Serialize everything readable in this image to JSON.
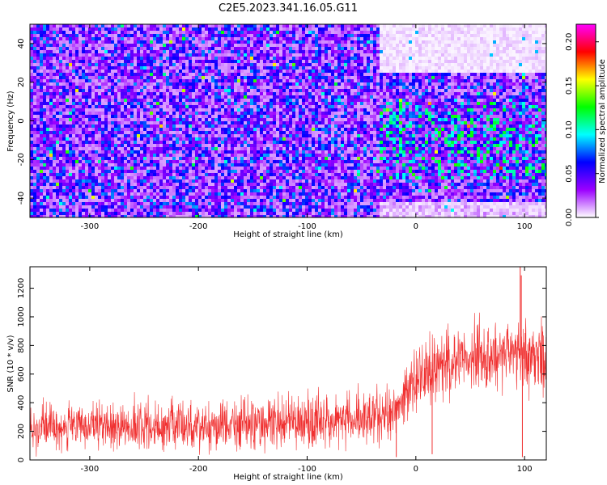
{
  "title": "C2E5.2023.341.16.05.G11",
  "chart_data": [
    {
      "type": "heatmap",
      "xlabel": "Height of straight line (km)",
      "ylabel": "Frequency (Hz)",
      "xlim": [
        -355,
        120
      ],
      "ylim": [
        -50,
        50
      ],
      "xticks": [
        -300,
        -200,
        -100,
        0,
        100
      ],
      "yticks": [
        -40,
        -20,
        0,
        20,
        40
      ],
      "colorbar": {
        "label": "Normalized spectral amplitude",
        "range": [
          0.0,
          0.22
        ],
        "ticks": [
          "0.00",
          "0.05",
          "0.10",
          "0.15",
          "0.20"
        ],
        "tick_values": [
          0.0,
          0.05,
          0.1,
          0.15,
          0.2
        ],
        "colormap": [
          "#ffffff",
          "#9b00ff",
          "#0000ff",
          "#00ffff",
          "#00ff00",
          "#ffff00",
          "#ff0000",
          "#ff00ff"
        ]
      },
      "regions": [
        {
          "x": [
            -355,
            -35
          ],
          "f": [
            -50,
            50
          ],
          "mean_amplitude": 0.045
        },
        {
          "x": [
            -35,
            120
          ],
          "f": [
            -30,
            10
          ],
          "mean_amplitude": 0.07
        },
        {
          "x": [
            -35,
            120
          ],
          "f": [
            25,
            50
          ],
          "mean_amplitude": 0.005
        },
        {
          "x": [
            -35,
            120
          ],
          "f": [
            -50,
            -42
          ],
          "mean_amplitude": 0.01
        }
      ]
    },
    {
      "type": "line",
      "xlabel": "Height of straight line (km)",
      "ylabel": "SNR (10 * v/v)",
      "xlim": [
        -355,
        120
      ],
      "ylim": [
        0,
        1350
      ],
      "xticks": [
        -300,
        -200,
        -100,
        0,
        100
      ],
      "yticks": [
        0,
        200,
        400,
        600,
        800,
        1000,
        1200
      ],
      "color": "#f03030",
      "envelope": [
        {
          "x": -355,
          "low": 60,
          "high": 420
        },
        {
          "x": -300,
          "low": 50,
          "high": 400
        },
        {
          "x": -250,
          "low": 50,
          "high": 420
        },
        {
          "x": -200,
          "low": 50,
          "high": 430
        },
        {
          "x": -150,
          "low": 60,
          "high": 450
        },
        {
          "x": -100,
          "low": 70,
          "high": 470
        },
        {
          "x": -60,
          "low": 80,
          "high": 480
        },
        {
          "x": -30,
          "low": 100,
          "high": 500
        },
        {
          "x": -20,
          "low": 150,
          "high": 560
        },
        {
          "x": -10,
          "low": 200,
          "high": 680
        },
        {
          "x": 0,
          "low": 260,
          "high": 800
        },
        {
          "x": 10,
          "low": 330,
          "high": 870
        },
        {
          "x": 20,
          "low": 400,
          "high": 930
        },
        {
          "x": 40,
          "low": 450,
          "high": 970
        },
        {
          "x": 60,
          "low": 470,
          "high": 990
        },
        {
          "x": 80,
          "low": 480,
          "high": 1000
        },
        {
          "x": 100,
          "low": 460,
          "high": 1000
        },
        {
          "x": 120,
          "low": 440,
          "high": 1010
        }
      ],
      "spikes": [
        {
          "x": 96,
          "y": 1350
        },
        {
          "x": 97,
          "y": 1290
        },
        {
          "x": 98,
          "y": 20
        },
        {
          "x": -18,
          "y": 20
        },
        {
          "x": 15,
          "y": 40
        }
      ]
    }
  ]
}
